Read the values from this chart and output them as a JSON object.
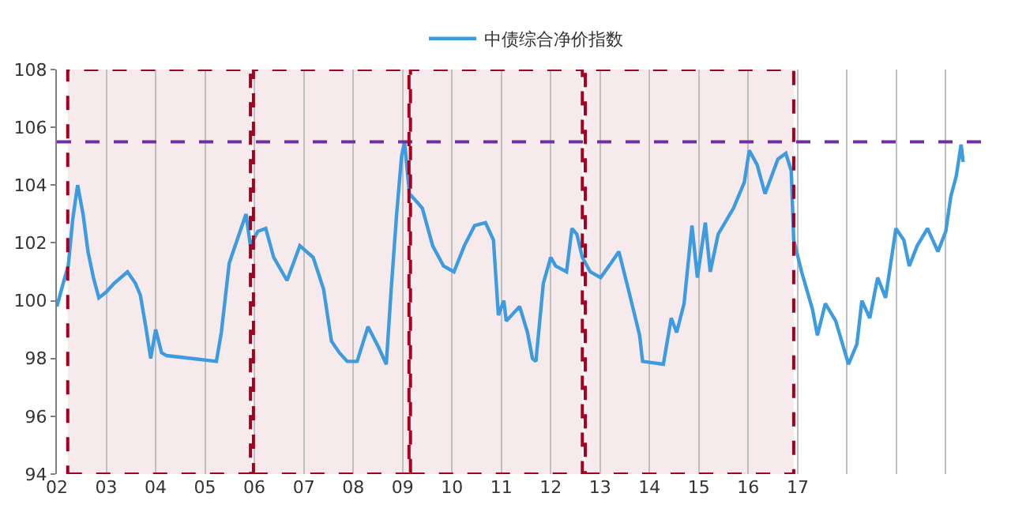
{
  "chart_data": {
    "type": "line",
    "series": [
      {
        "name": "中债综合净价指数",
        "color": "#3d9be0",
        "x": [
          2002.0,
          2002.16,
          2002.23,
          2002.32,
          2002.42,
          2002.53,
          2002.63,
          2002.74,
          2002.85,
          2003.0,
          2003.16,
          2003.43,
          2003.59,
          2003.69,
          2003.8,
          2003.9,
          2004.0,
          2004.12,
          2004.22,
          2005.23,
          2005.33,
          2005.49,
          2005.65,
          2005.75,
          2005.83,
          2005.92,
          2006.07,
          2006.23,
          2006.39,
          2006.66,
          2006.92,
          2007.19,
          2007.4,
          2007.56,
          2007.72,
          2007.88,
          2008.08,
          2008.3,
          2008.51,
          2008.67,
          2008.77,
          2008.88,
          2008.98,
          2009.04,
          2009.14,
          2009.3,
          2009.4,
          2009.61,
          2009.83,
          2010.04,
          2010.25,
          2010.46,
          2010.68,
          2010.84,
          2010.94,
          2011.05,
          2011.1,
          2011.37,
          2011.53,
          2011.63,
          2011.7,
          2011.85,
          2012.0,
          2012.1,
          2012.32,
          2012.43,
          2012.53,
          2012.64,
          2012.8,
          2013.01,
          2013.22,
          2013.38,
          2013.6,
          2013.8,
          2013.86,
          2014.28,
          2014.44,
          2014.55,
          2014.7,
          2014.86,
          2014.97,
          2015.13,
          2015.23,
          2015.39,
          2015.7,
          2015.92,
          2016.02,
          2016.18,
          2016.34,
          2016.6,
          2016.76,
          2016.87,
          2016.92,
          2017.08,
          2017.3,
          2017.4,
          2017.56,
          2017.77,
          2018.03,
          2018.2,
          2018.3,
          2018.46,
          2018.62,
          2018.78,
          2018.99,
          2019.15,
          2019.26,
          2019.42,
          2019.63,
          2019.84,
          2020.0,
          2020.1,
          2020.21,
          2020.31,
          2020.35
        ],
        "values": [
          99.8,
          100.8,
          101.2,
          102.8,
          104.0,
          103.0,
          101.7,
          100.8,
          100.1,
          100.3,
          100.6,
          101.0,
          100.6,
          100.2,
          99.1,
          98.0,
          99.0,
          98.2,
          98.1,
          97.9,
          98.9,
          101.3,
          102.1,
          102.6,
          103.0,
          101.9,
          102.4,
          102.5,
          101.5,
          100.7,
          101.9,
          101.5,
          100.4,
          98.6,
          98.2,
          97.9,
          97.9,
          99.1,
          98.4,
          97.8,
          100.4,
          103.0,
          105.0,
          105.5,
          103.7,
          103.4,
          103.2,
          101.9,
          101.2,
          101.0,
          101.9,
          102.6,
          102.7,
          102.1,
          99.5,
          100.0,
          99.3,
          99.8,
          98.9,
          98.0,
          97.9,
          100.6,
          101.5,
          101.2,
          101.0,
          102.5,
          102.3,
          101.5,
          101.0,
          100.8,
          101.3,
          101.7,
          100.2,
          98.8,
          97.9,
          97.8,
          99.4,
          98.9,
          99.9,
          102.6,
          100.8,
          102.7,
          101.0,
          102.3,
          103.2,
          104.1,
          105.2,
          104.7,
          103.7,
          104.9,
          105.1,
          104.5,
          102.1,
          101.0,
          99.7,
          98.8,
          99.9,
          99.3,
          97.8,
          98.5,
          100.0,
          99.4,
          100.8,
          100.1,
          102.5,
          102.1,
          101.2,
          101.9,
          102.5,
          101.7,
          102.4,
          103.6,
          104.3,
          105.4,
          104.8
        ]
      }
    ],
    "xlim": [
      2002,
      2021
    ],
    "xticks": [
      {
        "value": 2002,
        "label": "02"
      },
      {
        "value": 2003,
        "label": "03"
      },
      {
        "value": 2004,
        "label": "04"
      },
      {
        "value": 2005,
        "label": "05"
      },
      {
        "value": 2006,
        "label": "06"
      },
      {
        "value": 2007,
        "label": "07"
      },
      {
        "value": 2008,
        "label": "08"
      },
      {
        "value": 2009,
        "label": "09"
      },
      {
        "value": 2010,
        "label": "10"
      },
      {
        "value": 2011,
        "label": "11"
      },
      {
        "value": 2012,
        "label": "12"
      },
      {
        "value": 2013,
        "label": "13"
      },
      {
        "value": 2014,
        "label": "14"
      },
      {
        "value": 2015,
        "label": "15"
      },
      {
        "value": 2016,
        "label": "16"
      },
      {
        "value": 2017,
        "label": "17"
      },
      {
        "value": 2018,
        "label": null
      },
      {
        "value": 2019,
        "label": null
      },
      {
        "value": 2020,
        "label": null
      }
    ],
    "ylim": [
      94,
      108
    ],
    "yticks": [
      94,
      96,
      98,
      100,
      102,
      104,
      106,
      108
    ],
    "grid": "x",
    "legend": "top",
    "marker": "none",
    "line_style": "solid",
    "ref_lines": [
      {
        "axis": "y",
        "value": 105.5,
        "color": "#7030a0",
        "line_style": "dashed"
      }
    ],
    "bands": [
      {
        "axis": "x",
        "from": 2002.22,
        "to": 2005.92,
        "color": "#a50021"
      },
      {
        "axis": "x",
        "from": 2005.98,
        "to": 2009.13,
        "color": "#a50021"
      },
      {
        "axis": "x",
        "from": 2009.16,
        "to": 2012.64,
        "color": "#a50021"
      },
      {
        "axis": "x",
        "from": 2012.7,
        "to": 2016.92,
        "color": "#a50021"
      }
    ]
  }
}
